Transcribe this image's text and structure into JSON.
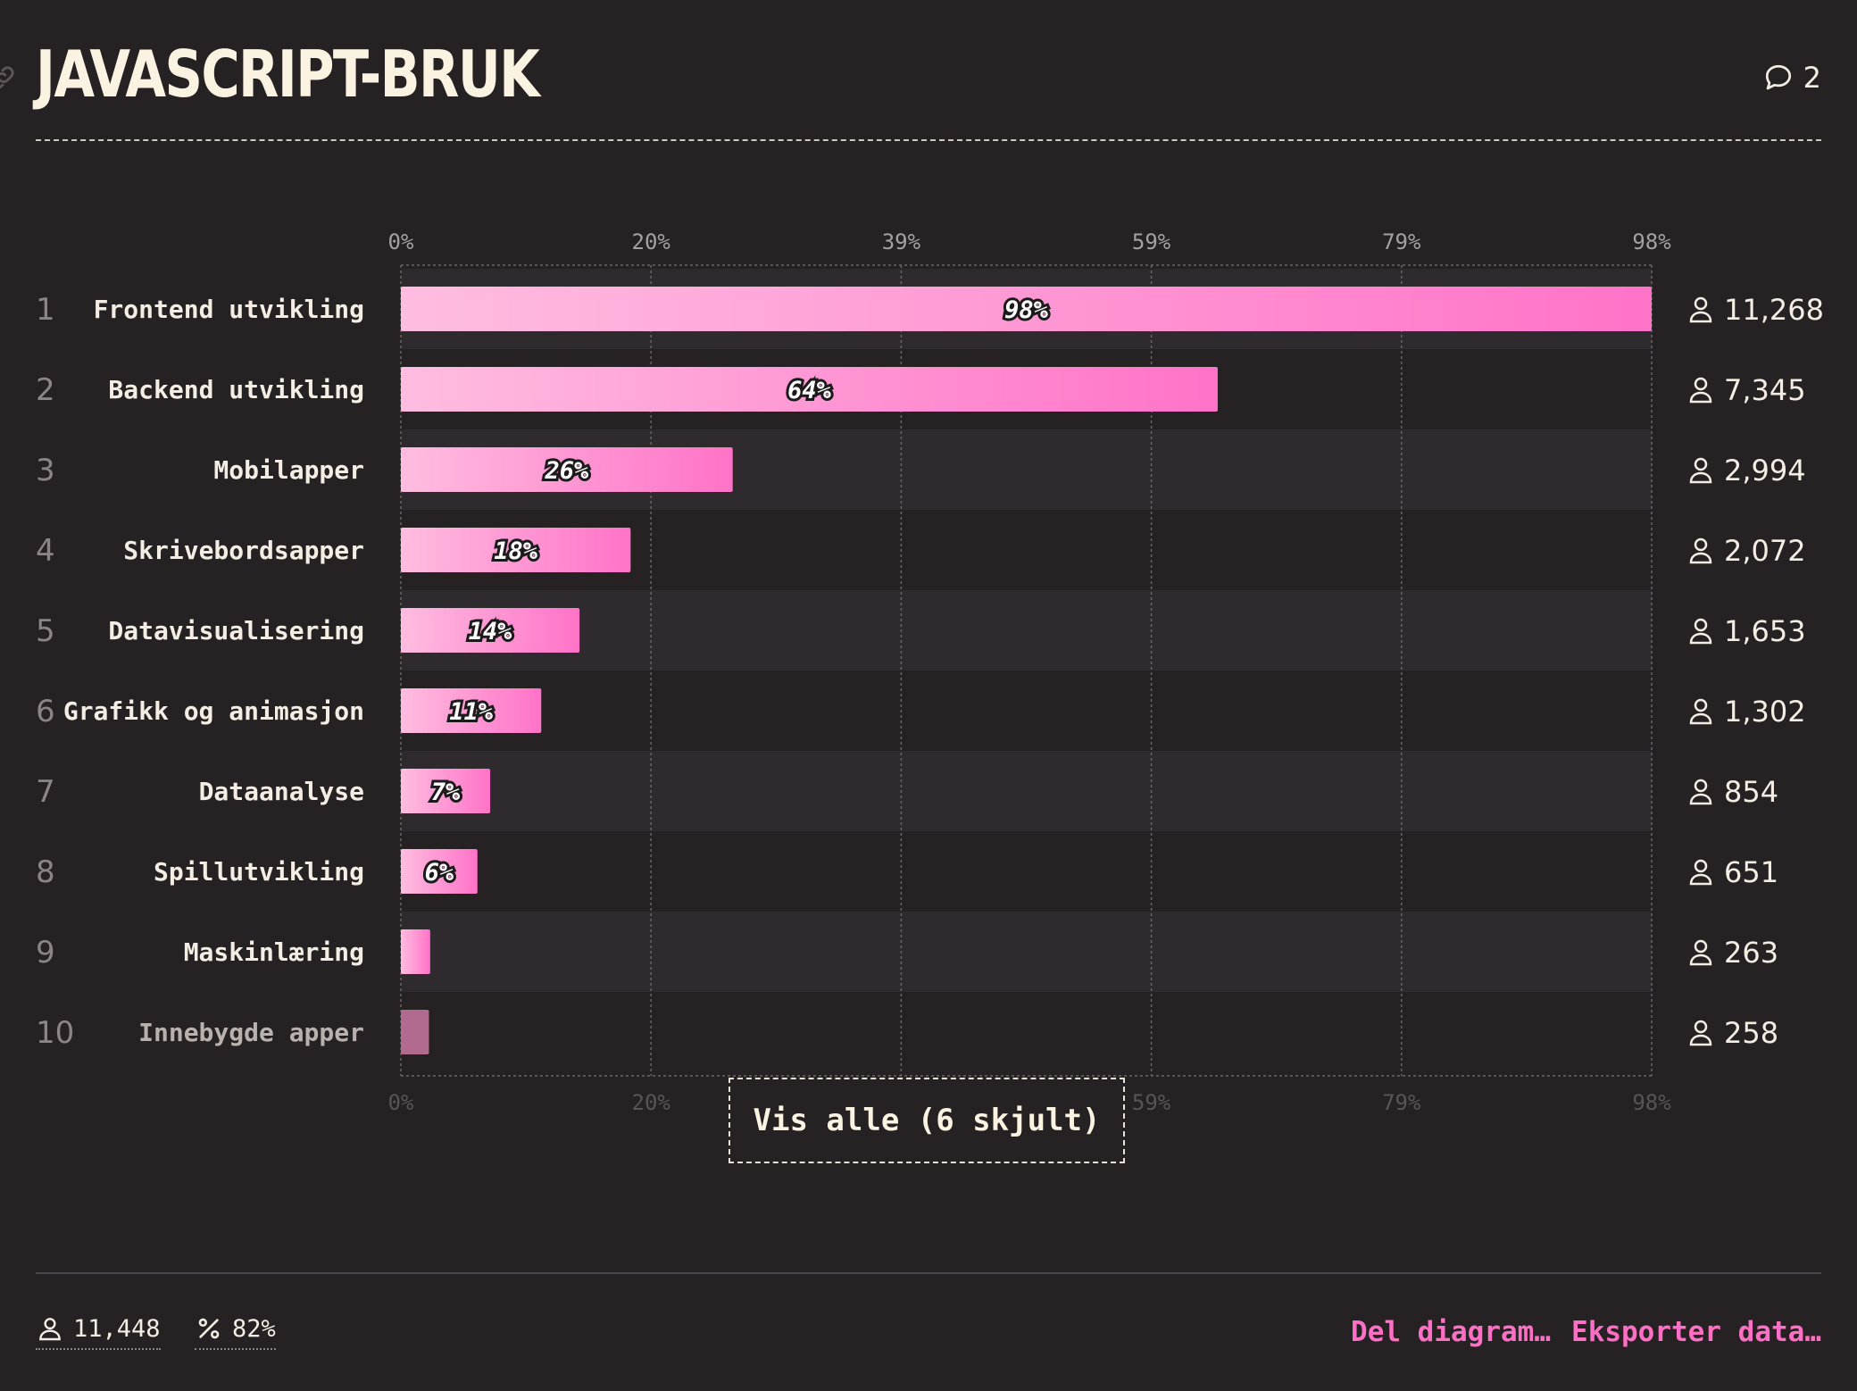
{
  "header": {
    "title": "JAVASCRIPT-BRUK",
    "comments_count": "2"
  },
  "chart_data": {
    "type": "bar",
    "orientation": "horizontal",
    "title": "JAVASCRIPT-BRUK",
    "xlim": [
      0,
      98
    ],
    "x_ticks": [
      "0%",
      "20%",
      "39%",
      "59%",
      "79%",
      "98%"
    ],
    "grid": true,
    "ranks": [
      "1",
      "2",
      "3",
      "4",
      "5",
      "6",
      "7",
      "8",
      "9",
      "10"
    ],
    "categories": [
      "Frontend utvikling",
      "Backend utvikling",
      "Mobilapper",
      "Skrivebordsapper",
      "Datavisualisering",
      "Grafikk og animasjon",
      "Dataanalyse",
      "Spillutvikling",
      "Maskinlæring",
      "Innebygde apper"
    ],
    "values": [
      98,
      64,
      26,
      18,
      14,
      11,
      7,
      6,
      2.3,
      2.2
    ],
    "value_labels": [
      "98%",
      "64%",
      "26%",
      "18%",
      "14%",
      "11%",
      "7%",
      "6%",
      "",
      ""
    ],
    "counts": [
      "11,268",
      "7,345",
      "2,994",
      "2,072",
      "1,653",
      "1,302",
      "854",
      "651",
      "263",
      "258"
    ],
    "bar_color_start": "#ffbde0",
    "bar_color_end": "#ff73c8",
    "last_bar_color": "#b06b8e"
  },
  "show_all_button": "Vis alle (6 skjult)",
  "footer": {
    "respondents": "11,448",
    "percent": "82%",
    "share_label": "Del diagram…",
    "export_label": "Eksporter data…"
  },
  "colors": {
    "background": "#262224",
    "accent": "#ff6fc4"
  }
}
